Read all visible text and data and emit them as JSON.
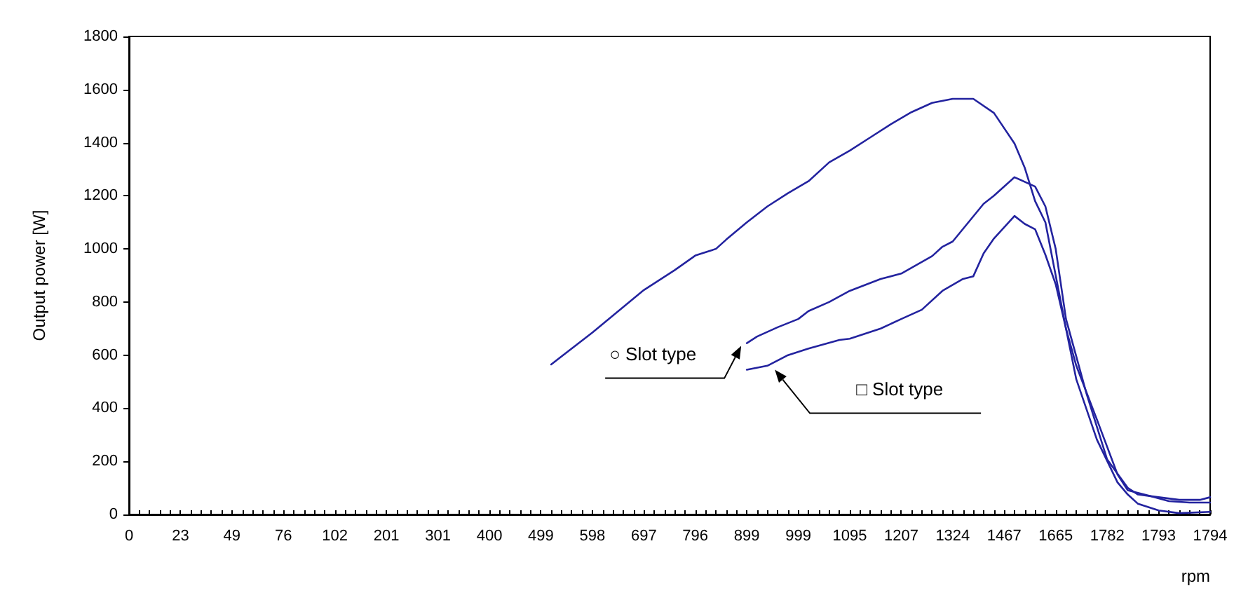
{
  "chart_data": {
    "type": "line",
    "categories": [
      "0",
      null,
      null,
      null,
      null,
      "23",
      null,
      null,
      null,
      null,
      "49",
      null,
      null,
      null,
      null,
      "76",
      null,
      null,
      null,
      null,
      "102",
      null,
      null,
      null,
      null,
      "201",
      null,
      null,
      null,
      null,
      "301",
      null,
      null,
      null,
      null,
      "400",
      null,
      null,
      null,
      null,
      "499",
      null,
      null,
      null,
      null,
      "598",
      null,
      null,
      null,
      null,
      "697",
      null,
      null,
      null,
      null,
      "796",
      null,
      null,
      null,
      null,
      "899",
      null,
      null,
      null,
      null,
      "999",
      null,
      null,
      null,
      null,
      "1095",
      null,
      null,
      null,
      null,
      "1207",
      null,
      null,
      null,
      null,
      "1324",
      null,
      null,
      null,
      null,
      "1467",
      null,
      null,
      null,
      null,
      "1665",
      null,
      null,
      null,
      null,
      "1782",
      null,
      null,
      null,
      null,
      "1793",
      null,
      null,
      null,
      null,
      "1794"
    ],
    "series": [
      {
        "color": "#23239f",
        "values": [
          null,
          null,
          null,
          null,
          null,
          null,
          null,
          null,
          null,
          null,
          null,
          null,
          null,
          null,
          null,
          null,
          null,
          null,
          null,
          null,
          null,
          null,
          null,
          null,
          null,
          null,
          null,
          null,
          null,
          null,
          null,
          null,
          null,
          null,
          null,
          null,
          null,
          null,
          null,
          null,
          null,
          565,
          null,
          null,
          null,
          685,
          null,
          null,
          null,
          null,
          845,
          null,
          null,
          920,
          null,
          975,
          null,
          1000,
          1035,
          null,
          1100,
          null,
          1160,
          null,
          1210,
          null,
          1255,
          null,
          1326,
          null,
          1370,
          null,
          1420,
          null,
          1470,
          null,
          1515,
          null,
          1550,
          null,
          1565,
          null,
          1565,
          null,
          1512,
          null,
          1397,
          1305,
          1180,
          1100,
          900,
          700,
          509,
          null,
          282,
          null,
          121,
          75,
          40,
          null,
          15,
          null,
          5,
          null,
          null,
          10
        ]
      },
      {
        "name": "○ Slot type",
        "color": "#23239f",
        "values": [
          null,
          null,
          null,
          null,
          null,
          null,
          null,
          null,
          null,
          null,
          null,
          null,
          null,
          null,
          null,
          null,
          null,
          null,
          null,
          null,
          null,
          null,
          null,
          null,
          null,
          null,
          null,
          null,
          null,
          null,
          null,
          null,
          null,
          null,
          null,
          null,
          null,
          null,
          null,
          null,
          null,
          null,
          null,
          null,
          null,
          null,
          null,
          null,
          null,
          null,
          null,
          null,
          null,
          null,
          null,
          null,
          null,
          null,
          null,
          null,
          645,
          670,
          null,
          705,
          null,
          736,
          766,
          null,
          800,
          null,
          842,
          null,
          null,
          887,
          null,
          907,
          null,
          null,
          973,
          1008,
          1028,
          null,
          null,
          1170,
          1200,
          null,
          1270,
          null,
          1235,
          1160,
          1000,
          736,
          null,
          454,
          null,
          207,
          null,
          100,
          75,
          null,
          65,
          null,
          55,
          null,
          55,
          65
        ]
      },
      {
        "name": "□ Slot type",
        "color": "#23239f",
        "values": [
          null,
          null,
          null,
          null,
          null,
          null,
          null,
          null,
          null,
          null,
          null,
          null,
          null,
          null,
          null,
          null,
          null,
          null,
          null,
          null,
          null,
          null,
          null,
          null,
          null,
          null,
          null,
          null,
          null,
          null,
          null,
          null,
          null,
          null,
          null,
          null,
          null,
          null,
          null,
          null,
          null,
          null,
          null,
          null,
          null,
          null,
          null,
          null,
          null,
          null,
          null,
          null,
          null,
          null,
          null,
          null,
          null,
          null,
          null,
          null,
          545,
          null,
          560,
          null,
          600,
          null,
          625,
          null,
          null,
          657,
          662,
          null,
          null,
          700,
          null,
          736,
          null,
          771,
          null,
          842,
          null,
          887,
          897,
          983,
          1039,
          null,
          1124,
          1094,
          1074,
          978,
          867,
          700,
          560,
          null,
          358,
          null,
          151,
          91,
          null,
          71,
          null,
          50,
          null,
          45,
          null,
          45
        ]
      }
    ],
    "xlabel": "rpm",
    "ylabel": "Output power [W]",
    "ylim": [
      0,
      1800
    ],
    "yticks": [
      0,
      200,
      400,
      600,
      800,
      1000,
      1200,
      1400,
      1600,
      1800
    ],
    "grid": false,
    "legend": false,
    "marker": "none",
    "line_style": "solid"
  }
}
